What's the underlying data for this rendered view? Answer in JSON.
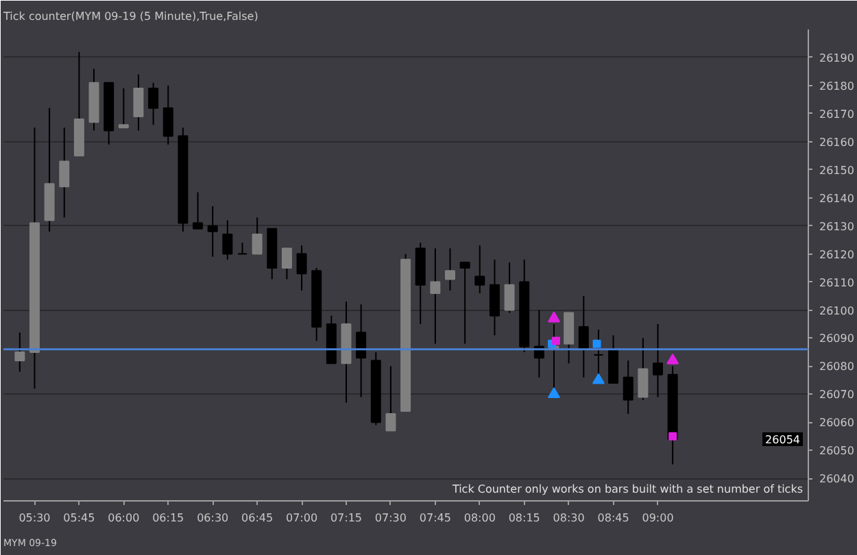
{
  "chart_data": {
    "type": "candlestick",
    "title": "Tick counter(MYM 09-19 (5 Minute),True,False)",
    "x": [
      5.4167,
      5.5,
      5.5833,
      5.6667,
      5.75,
      5.8333,
      5.9167,
      6,
      6.0833,
      6.1667,
      6.25,
      6.3333,
      6.4167,
      6.5,
      6.5833,
      6.6667,
      6.75,
      6.8333,
      6.9167,
      7,
      7.0833,
      7.1667,
      7.25,
      7.3333,
      7.4167,
      7.5,
      7.5833,
      7.6667,
      7.75,
      7.8333,
      7.9167,
      8,
      8.0833,
      8.1667,
      8.25,
      8.3333,
      8.4167,
      8.5,
      8.5833,
      8.6667,
      8.75,
      8.8333,
      8.9167,
      9,
      9.0833
    ],
    "ohlc": [
      [
        26082,
        26092,
        26078,
        26085
      ],
      [
        26085,
        26165,
        26072,
        26131
      ],
      [
        26132,
        26172,
        26128,
        26145
      ],
      [
        26144,
        26165,
        26133,
        26153
      ],
      [
        26155,
        26192,
        26155,
        26168
      ],
      [
        26167,
        26186,
        26164,
        26181
      ],
      [
        26181,
        26181,
        26159,
        26164
      ],
      [
        26165,
        26179,
        26165,
        26166
      ],
      [
        26169,
        26184,
        26164,
        26179
      ],
      [
        26179,
        26181,
        26166,
        26172
      ],
      [
        26172,
        26180,
        26159,
        26162
      ],
      [
        26162,
        26165,
        26128,
        26131
      ],
      [
        26131,
        26142,
        26129,
        26129
      ],
      [
        26130,
        26137,
        26119,
        26128
      ],
      [
        26127,
        26132,
        26118,
        26120
      ],
      [
        26120,
        26124,
        26120,
        26120
      ],
      [
        26120,
        26133,
        26120,
        26127
      ],
      [
        26129,
        26129,
        26111,
        26115
      ],
      [
        26115,
        26122,
        26111,
        26122
      ],
      [
        26120,
        26123,
        26107,
        26113
      ],
      [
        26114,
        26115,
        26089,
        26094
      ],
      [
        26095,
        26098,
        26081,
        26081
      ],
      [
        26081,
        26103,
        26067,
        26095
      ],
      [
        26092,
        26102,
        26069,
        26083
      ],
      [
        26082,
        26085,
        26059,
        26060
      ],
      [
        26057,
        26080,
        26057,
        26063
      ],
      [
        26064,
        26120,
        26064,
        26118
      ],
      [
        26122,
        26124,
        26095,
        26109
      ],
      [
        26106,
        26122,
        26088,
        26110
      ],
      [
        26111,
        26122,
        26107,
        26114
      ],
      [
        26117,
        26117,
        26088,
        26115
      ],
      [
        26112,
        26123,
        26106,
        26109
      ],
      [
        26109,
        26118,
        26091,
        26098
      ],
      [
        26100,
        26117,
        26099,
        26109
      ],
      [
        26110,
        26118,
        26085,
        26087
      ],
      [
        26087,
        26100,
        26076,
        26083
      ],
      [
        26086,
        26095,
        26072,
        26087
      ],
      [
        26088,
        26099,
        26081,
        26099
      ],
      [
        26094,
        26105,
        26076,
        26086
      ],
      [
        26084,
        26093,
        26077,
        26084
      ],
      [
        26086,
        26091,
        26074,
        26074
      ],
      [
        26076,
        26082,
        26063,
        26068
      ],
      [
        26069,
        26090,
        26068,
        26079
      ],
      [
        26081,
        26095,
        26069,
        26077
      ],
      [
        26077,
        26080,
        26045,
        26054
      ]
    ],
    "colors": [
      "#808080",
      "#808080",
      "#808080",
      "#808080",
      "#808080",
      "#808080",
      "#000000",
      "#808080",
      "#808080",
      "#000000",
      "#000000",
      "#000000",
      "#000000",
      "#000000",
      "#000000",
      "#000000",
      "#808080",
      "#000000",
      "#808080",
      "#000000",
      "#000000",
      "#000000",
      "#808080",
      "#000000",
      "#000000",
      "#808080",
      "#808080",
      "#000000",
      "#808080",
      "#808080",
      "#000000",
      "#000000",
      "#000000",
      "#808080",
      "#000000",
      "#000000",
      "#808080",
      "#808080",
      "#000000",
      "#000000",
      "#000000",
      "#000000",
      "#808080",
      "#000000",
      "#000000"
    ],
    "series": [
      {
        "type": "scatter",
        "marker": "triangle",
        "color": "#e020e0",
        "x": [
          8.4167,
          9.0833
        ],
        "values": [
          26097,
          26082
        ]
      },
      {
        "type": "scatter",
        "marker": "triangle",
        "color": "#1e90ff",
        "x": [
          8.4167,
          8.6667
        ],
        "values": [
          26070,
          26075
        ]
      },
      {
        "type": "scatter",
        "marker": "square",
        "color": "#1e90ff",
        "x": [
          8.405,
          8.6575
        ],
        "values": [
          26088,
          26088
        ]
      },
      {
        "type": "scatter",
        "marker": "square",
        "color": "#e020e0",
        "x": [
          8.428,
          9.0833
        ],
        "values": [
          26089,
          26055
        ]
      }
    ],
    "xlim": [
      5.325,
      9.845
    ],
    "xticks": [
      {
        "value": 5.5,
        "label": "05:30"
      },
      {
        "value": 5.75,
        "label": "05:45"
      },
      {
        "value": 6,
        "label": "06:00"
      },
      {
        "value": 6.25,
        "label": "06:15"
      },
      {
        "value": 6.5,
        "label": "06:30"
      },
      {
        "value": 6.75,
        "label": "06:45"
      },
      {
        "value": 7,
        "label": "07:00"
      },
      {
        "value": 7.25,
        "label": "07:15"
      },
      {
        "value": 7.5,
        "label": "07:30"
      },
      {
        "value": 7.75,
        "label": "07:45"
      },
      {
        "value": 8,
        "label": "08:00"
      },
      {
        "value": 8.25,
        "label": "08:15"
      },
      {
        "value": 8.5,
        "label": "08:30"
      },
      {
        "value": 8.75,
        "label": "08:45"
      },
      {
        "value": 9,
        "label": "09:00"
      }
    ],
    "ylim": [
      26032,
      26200
    ],
    "yticks": [
      26040,
      26050,
      26060,
      26070,
      26080,
      26090,
      26100,
      26110,
      26120,
      26130,
      26140,
      26150,
      26160,
      26170,
      26180,
      26190
    ],
    "grid": "y",
    "ref_lines": [
      {
        "axis": "y",
        "value": 26086,
        "color": "#4a7fd4"
      }
    ],
    "annotations": [
      "Tick Counter only works on bars built with a set number of ticks",
      "MYM 09-19",
      "26054"
    ]
  }
}
